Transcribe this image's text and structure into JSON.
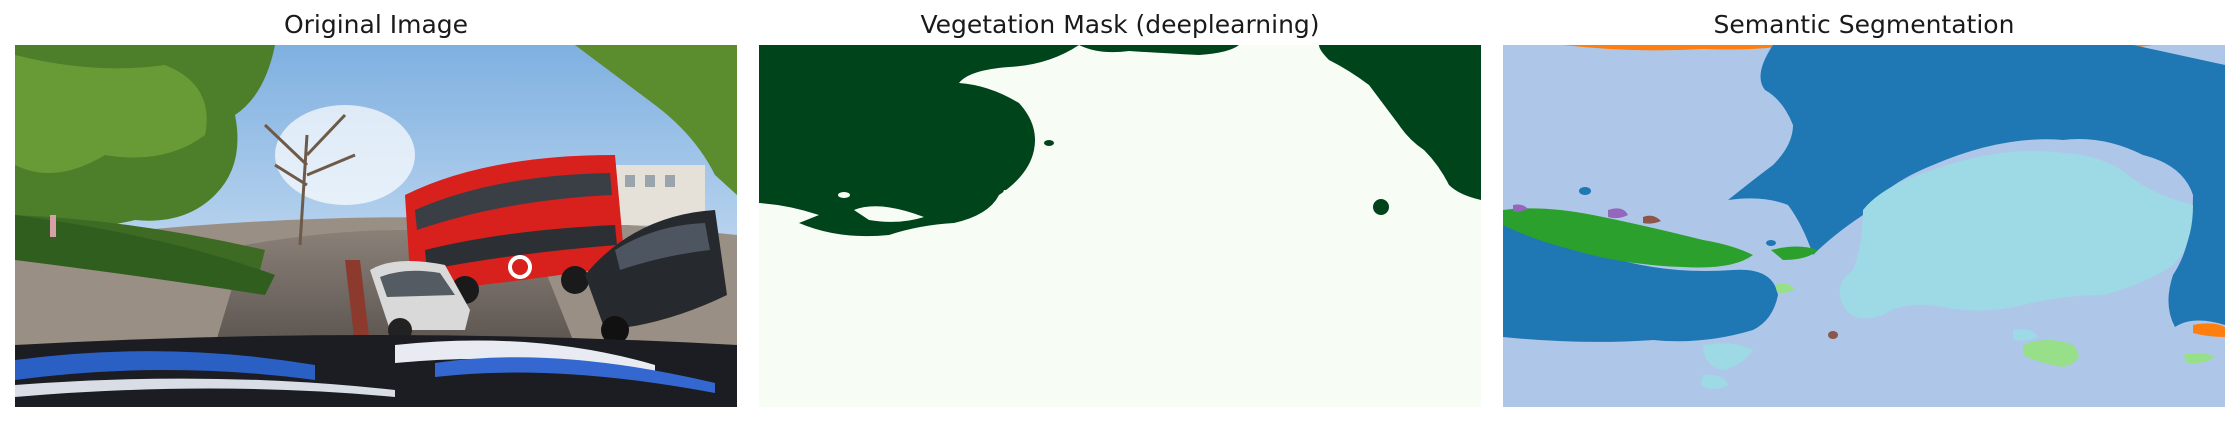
{
  "panels": [
    {
      "title": "Original Image",
      "image": "street-panorama-photo"
    },
    {
      "title": "Vegetation Mask (deeplearning)",
      "image": "vegetation-mask",
      "colors": {
        "vegetation": "#00441b",
        "other": "#f7fcf5"
      }
    },
    {
      "title": "Semantic Segmentation",
      "image": "semantic-segmentation-map",
      "colors": {
        "background": "#aec7e8",
        "dark_blue": "#1f77b4",
        "light_cyan": "#9edae5",
        "green": "#2ca02c",
        "light_green": "#98df8a",
        "orange": "#ff7f0e",
        "purple": "#9467bd",
        "brown": "#8c564b"
      }
    }
  ]
}
